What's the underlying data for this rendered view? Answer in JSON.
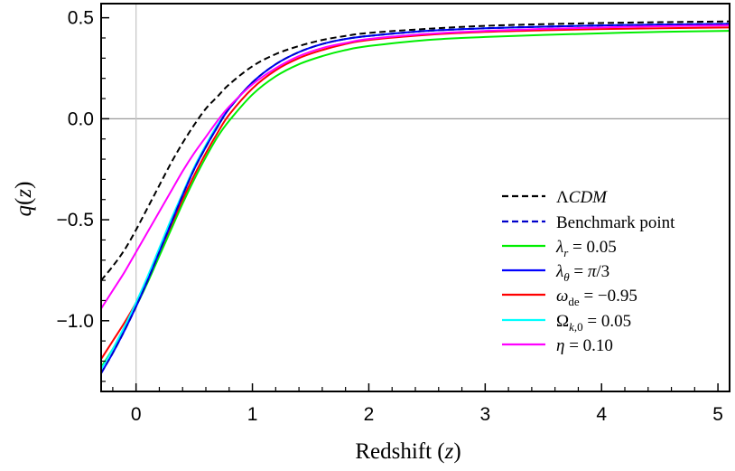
{
  "chart_data": {
    "type": "line",
    "title": "",
    "xlabel": "Redshift (z)",
    "ylabel": "q(z)",
    "xlim": [
      -0.3,
      5.1
    ],
    "ylim": [
      -1.35,
      0.57
    ],
    "xticks": [
      0,
      1,
      2,
      3,
      4,
      5
    ],
    "yticks": [
      -1.0,
      -0.5,
      0.0,
      0.5
    ],
    "xtick_labels": [
      "0",
      "1",
      "2",
      "3",
      "4",
      "5"
    ],
    "ytick_labels": [
      "−1.0",
      "−0.5",
      "0.0",
      "0.5"
    ],
    "reference_lines": {
      "horizontal_y": 0,
      "vertical_x": 0
    },
    "grid": false,
    "legend_position": "lower-right",
    "series": [
      {
        "name": "ΛCDM",
        "color": "#000000",
        "dash": "dashed",
        "x": [
          -0.3,
          -0.2,
          -0.1,
          0.0,
          0.1,
          0.2,
          0.3,
          0.4,
          0.5,
          0.6,
          0.7,
          0.8,
          1.0,
          1.2,
          1.4,
          1.6,
          1.8,
          2.0,
          2.5,
          3.0,
          3.5,
          4.0,
          4.5,
          5.1
        ],
        "y": [
          -0.8,
          -0.73,
          -0.65,
          -0.55,
          -0.44,
          -0.33,
          -0.22,
          -0.12,
          -0.03,
          0.05,
          0.11,
          0.17,
          0.26,
          0.32,
          0.36,
          0.39,
          0.41,
          0.425,
          0.445,
          0.46,
          0.468,
          0.474,
          0.478,
          0.482
        ]
      },
      {
        "name": "Benchmark point",
        "color": "#0000cc",
        "dash": "dashed",
        "x": [
          -0.3,
          -0.2,
          -0.1,
          0.0,
          0.1,
          0.2,
          0.3,
          0.4,
          0.5,
          0.6,
          0.7,
          0.8,
          1.0,
          1.2,
          1.4,
          1.6,
          1.8,
          2.0,
          2.5,
          3.0,
          3.5,
          4.0,
          4.5,
          5.1
        ],
        "y": [
          -1.26,
          -1.16,
          -1.05,
          -0.93,
          -0.8,
          -0.66,
          -0.52,
          -0.38,
          -0.25,
          -0.14,
          -0.04,
          0.05,
          0.18,
          0.27,
          0.33,
          0.37,
          0.395,
          0.41,
          0.435,
          0.448,
          0.456,
          0.462,
          0.466,
          0.47
        ]
      },
      {
        "name": "λᵣ = 0.05",
        "color": "#00ee00",
        "dash": "solid",
        "x": [
          -0.3,
          -0.2,
          -0.1,
          0.0,
          0.1,
          0.2,
          0.3,
          0.4,
          0.5,
          0.6,
          0.7,
          0.8,
          1.0,
          1.2,
          1.4,
          1.6,
          1.8,
          2.0,
          2.5,
          3.0,
          3.5,
          4.0,
          4.5,
          5.1
        ],
        "y": [
          -1.23,
          -1.14,
          -1.04,
          -0.93,
          -0.81,
          -0.68,
          -0.55,
          -0.42,
          -0.3,
          -0.19,
          -0.09,
          -0.01,
          0.12,
          0.21,
          0.27,
          0.31,
          0.34,
          0.36,
          0.39,
          0.405,
          0.415,
          0.423,
          0.43,
          0.435
        ]
      },
      {
        "name": "λθ = π/3",
        "color": "#0000ff",
        "dash": "solid",
        "x": [
          -0.3,
          -0.2,
          -0.1,
          0.0,
          0.1,
          0.2,
          0.3,
          0.4,
          0.5,
          0.6,
          0.7,
          0.8,
          1.0,
          1.2,
          1.4,
          1.6,
          1.8,
          2.0,
          2.5,
          3.0,
          3.5,
          4.0,
          4.5,
          5.1
        ],
        "y": [
          -1.26,
          -1.16,
          -1.05,
          -0.93,
          -0.8,
          -0.66,
          -0.52,
          -0.38,
          -0.25,
          -0.14,
          -0.04,
          0.05,
          0.18,
          0.27,
          0.33,
          0.37,
          0.395,
          0.41,
          0.435,
          0.448,
          0.456,
          0.462,
          0.466,
          0.47
        ]
      },
      {
        "name": "ωde = −0.95",
        "color": "#ff0000",
        "dash": "solid",
        "x": [
          -0.3,
          -0.2,
          -0.1,
          0.0,
          0.1,
          0.2,
          0.3,
          0.4,
          0.5,
          0.6,
          0.7,
          0.8,
          1.0,
          1.2,
          1.4,
          1.6,
          1.8,
          2.0,
          2.5,
          3.0,
          3.5,
          4.0,
          4.5,
          5.1
        ],
        "y": [
          -1.19,
          -1.1,
          -1.01,
          -0.91,
          -0.79,
          -0.66,
          -0.53,
          -0.4,
          -0.28,
          -0.17,
          -0.07,
          0.02,
          0.15,
          0.24,
          0.3,
          0.34,
          0.37,
          0.39,
          0.415,
          0.43,
          0.438,
          0.444,
          0.448,
          0.452
        ]
      },
      {
        "name": "Ωk,0 = 0.05",
        "color": "#00ffff",
        "dash": "solid",
        "x": [
          -0.3,
          -0.2,
          -0.1,
          0.0,
          0.1,
          0.2,
          0.3,
          0.4,
          0.5,
          0.6,
          0.7,
          0.8,
          1.0,
          1.2,
          1.4,
          1.6,
          1.8,
          2.0,
          2.5,
          3.0,
          3.5,
          4.0,
          4.5,
          5.1
        ],
        "y": [
          -1.24,
          -1.14,
          -1.03,
          -0.91,
          -0.78,
          -0.64,
          -0.5,
          -0.37,
          -0.24,
          -0.13,
          -0.03,
          0.05,
          0.18,
          0.27,
          0.33,
          0.37,
          0.395,
          0.41,
          0.435,
          0.448,
          0.456,
          0.462,
          0.466,
          0.47
        ]
      },
      {
        "name": "η = 0.10",
        "color": "#ff00ff",
        "dash": "solid",
        "x": [
          -0.3,
          -0.2,
          -0.1,
          0.0,
          0.1,
          0.2,
          0.3,
          0.4,
          0.5,
          0.6,
          0.7,
          0.8,
          1.0,
          1.2,
          1.4,
          1.6,
          1.8,
          2.0,
          2.5,
          3.0,
          3.5,
          4.0,
          4.5,
          5.1
        ],
        "y": [
          -0.94,
          -0.85,
          -0.76,
          -0.66,
          -0.56,
          -0.46,
          -0.36,
          -0.26,
          -0.17,
          -0.09,
          -0.01,
          0.06,
          0.17,
          0.25,
          0.31,
          0.35,
          0.375,
          0.395,
          0.42,
          0.435,
          0.445,
          0.452,
          0.458,
          0.462
        ]
      }
    ]
  }
}
